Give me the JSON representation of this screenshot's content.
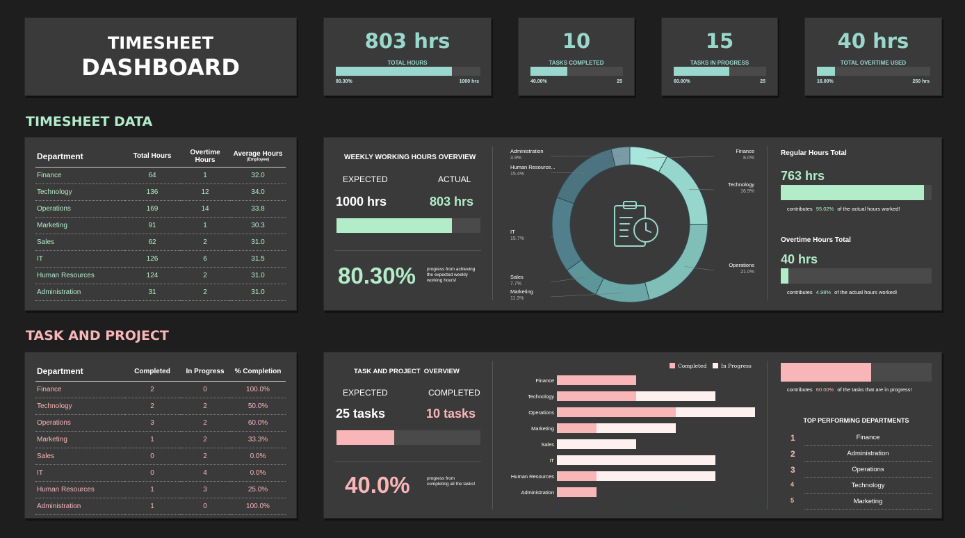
{
  "header": {
    "title_line1": "TIMESHEET",
    "title_line2": "DASHBOARD"
  },
  "kpis": [
    {
      "value": "803 hrs",
      "label": "TOTAL HOURS",
      "pct_label": "80.30%",
      "max_label": "1000 hrs",
      "fill": 0.803
    },
    {
      "value": "10",
      "label": "TASKS COMPLETED",
      "pct_label": "40.00%",
      "max_label": "25",
      "fill": 0.4
    },
    {
      "value": "15",
      "label": "TASKS IN PROGRESS",
      "pct_label": "60.00%",
      "max_label": "25",
      "fill": 0.6
    },
    {
      "value": "40 hrs",
      "label": "TOTAL OVERTIME USED",
      "pct_label": "16.00%",
      "max_label": "250 hrs",
      "fill": 0.16
    }
  ],
  "timesheet_section": {
    "title": "TIMESHEET DATA"
  },
  "timesheet_table": {
    "headers": {
      "department": "Department",
      "total": "Total Hours",
      "overtime": "Overtime Hours",
      "average": "Average Hours",
      "average_sub": "(Employee)"
    },
    "rows": [
      {
        "dept": "Finance",
        "total": "64",
        "overtime": "1",
        "avg": "32.0"
      },
      {
        "dept": "Technology",
        "total": "136",
        "overtime": "12",
        "avg": "34.0"
      },
      {
        "dept": "Operations",
        "total": "169",
        "overtime": "14",
        "avg": "33.8"
      },
      {
        "dept": "Marketing",
        "total": "91",
        "overtime": "1",
        "avg": "30.3"
      },
      {
        "dept": "Sales",
        "total": "62",
        "overtime": "2",
        "avg": "31.0"
      },
      {
        "dept": "IT",
        "total": "126",
        "overtime": "6",
        "avg": "31.5"
      },
      {
        "dept": "Human Resources",
        "total": "124",
        "overtime": "2",
        "avg": "31.0"
      },
      {
        "dept": "Administration",
        "total": "31",
        "overtime": "2",
        "avg": "31.0"
      }
    ]
  },
  "weekly": {
    "title": "WEEKLY WORKING HOURS OVERVIEW",
    "expected_label": "EXPECTED",
    "actual_label": "ACTUAL",
    "expected_value": "1000 hrs",
    "actual_value": "803 hrs",
    "progress": 0.803,
    "pct": "80.30%",
    "pct_note": "progress from achieving the expected weekly working hours!"
  },
  "hours_split": {
    "regular_title": "Regular Hours Total",
    "regular_value": "763 hrs",
    "regular_fill": 0.9502,
    "regular_note_pre": "contributes",
    "regular_note_pct": "95.02%",
    "regular_note_post": "of the actual hours worked!",
    "overtime_title": "Overtime Hours Total",
    "overtime_value": "40 hrs",
    "overtime_fill": 0.0498,
    "overtime_note_pre": "contributes",
    "overtime_note_pct": "4.98%",
    "overtime_note_post": "of the actual hours worked!"
  },
  "task_section": {
    "title": "TASK AND PROJECT"
  },
  "task_table": {
    "headers": {
      "department": "Department",
      "completed": "Completed",
      "inprogress": "In Progress",
      "completion": "% Completion"
    },
    "rows": [
      {
        "dept": "Finance",
        "completed": "2",
        "inprogress": "0",
        "pct": "100.0%"
      },
      {
        "dept": "Technology",
        "completed": "2",
        "inprogress": "2",
        "pct": "50.0%"
      },
      {
        "dept": "Operations",
        "completed": "3",
        "inprogress": "2",
        "pct": "60.0%"
      },
      {
        "dept": "Marketing",
        "completed": "1",
        "inprogress": "2",
        "pct": "33.3%"
      },
      {
        "dept": "Sales",
        "completed": "0",
        "inprogress": "2",
        "pct": "0.0%"
      },
      {
        "dept": "IT",
        "completed": "0",
        "inprogress": "4",
        "pct": "0.0%"
      },
      {
        "dept": "Human Resources",
        "completed": "1",
        "inprogress": "3",
        "pct": "25.0%"
      },
      {
        "dept": "Administration",
        "completed": "1",
        "inprogress": "0",
        "pct": "100.0%"
      }
    ]
  },
  "task_overview": {
    "title": "TASK AND PROJECT  OVERVIEW",
    "expected_label": "EXPECTED",
    "completed_label": "COMPLETED",
    "expected_value": "25 tasks",
    "completed_value": "10 tasks",
    "progress": 0.4,
    "pct": "40.0%",
    "pct_note": "progress from completing all the tasks!"
  },
  "task_split": {
    "fill": 0.6,
    "note_pre": "contributes",
    "note_pct": "60.00%",
    "note_post": "of the tasks that are in progress!"
  },
  "top_departments": {
    "title": "TOP PERFORMING DEPARTMENTS",
    "items": [
      {
        "rank": "1",
        "name": "Finance"
      },
      {
        "rank": "2",
        "name": "Administration"
      },
      {
        "rank": "3",
        "name": "Operations"
      },
      {
        "rank": "4",
        "name": "Technology"
      },
      {
        "rank": "5",
        "name": "Marketing"
      }
    ]
  },
  "colors": {
    "teal": "#9ad8cd",
    "green": "#b3ecc9",
    "pink": "#f9b6b8",
    "panel": "#3a3a3a",
    "background": "#1e1e1e"
  },
  "icons": {
    "donut_center": "clipboard-clock-icon"
  },
  "chart_data": [
    {
      "type": "pie",
      "style": "donut",
      "categories": [
        "Finance",
        "Technology",
        "Operations",
        "Marketing",
        "Sales",
        "IT",
        "Human Resources",
        "Administration"
      ],
      "legend_labels": [
        "Finance",
        "Technology",
        "Operations",
        "Marketing",
        "Sales",
        "IT",
        "Human Resources",
        "Administration"
      ],
      "callout_labels": [
        "Finance",
        "Technology",
        "Operations",
        "Marketing",
        "Sales",
        "IT",
        "Human Resource...",
        "Administration"
      ],
      "values": [
        8.0,
        16.9,
        21.0,
        11.3,
        7.7,
        15.7,
        15.4,
        3.9
      ],
      "value_labels": [
        "8.0%",
        "16.9%",
        "21.0%",
        "11.3%",
        "7.7%",
        "15.7%",
        "15.4%",
        "3.9%"
      ],
      "colors": [
        "#a8e6dc",
        "#96d6cc",
        "#7fbfb8",
        "#6aa7a6",
        "#5c959a",
        "#527f8c",
        "#4b7380",
        "#7a9aa6"
      ]
    },
    {
      "type": "bar",
      "orientation": "horizontal",
      "stacked": true,
      "categories": [
        "Finance",
        "Technology",
        "Operations",
        "Marketing",
        "Sales",
        "IT",
        "Human Resources",
        "Administration"
      ],
      "series": [
        {
          "name": "Completed",
          "values": [
            2,
            2,
            3,
            1,
            0,
            0,
            1,
            1
          ],
          "color": "#f9b6b8"
        },
        {
          "name": "In Progress",
          "values": [
            0,
            2,
            2,
            2,
            2,
            4,
            3,
            0
          ],
          "color": "#fff0f0"
        }
      ],
      "xlim": [
        0,
        5
      ],
      "xticks": [
        "0",
        "1",
        "2",
        "3",
        "4",
        "5"
      ],
      "legend": "top-right",
      "grid": false
    }
  ]
}
